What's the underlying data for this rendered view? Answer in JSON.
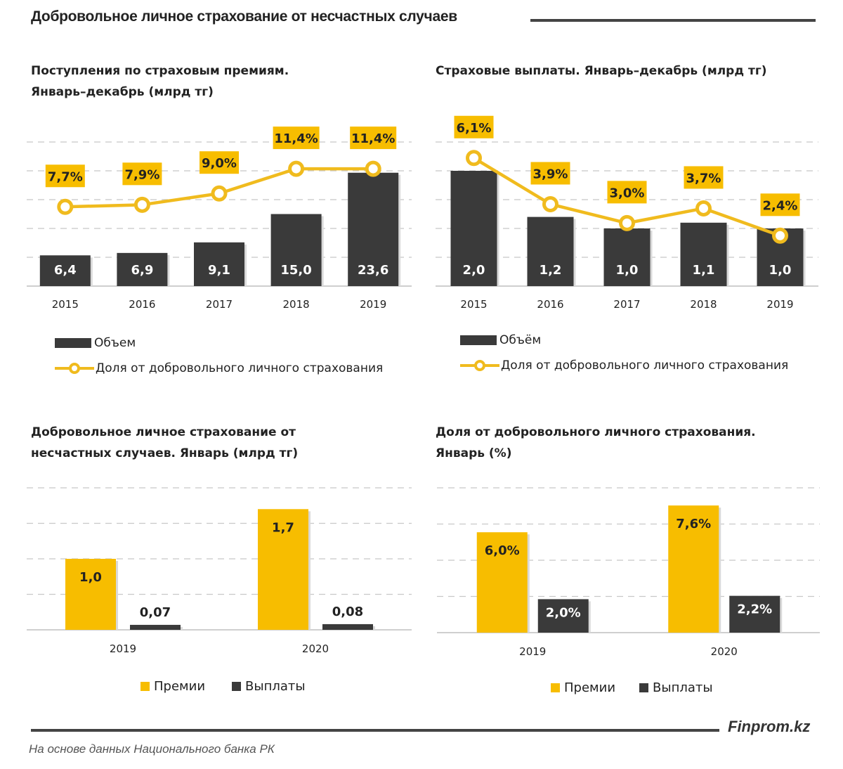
{
  "header": {
    "title": "Добровольное личное страхование от несчастных случаев"
  },
  "footer": {
    "brand": "Finprom.kz",
    "source": "На основе данных Национального банка РК"
  },
  "colors": {
    "bar_dark": "#3a3a3a",
    "accent_yellow": "#f7bd00",
    "line_yellow": "#f0bb1e",
    "grid": "#c8c8c8"
  },
  "chart_data": [
    {
      "type": "bar",
      "id": "premiums",
      "title": "Поступления  по страховым  премиям.\nЯнварь–декабрь  (млрд тг)",
      "categories": [
        "2015",
        "2016",
        "2017",
        "2018",
        "2019"
      ],
      "series": [
        {
          "name": "Объем",
          "kind": "bar",
          "values": [
            6.4,
            6.9,
            9.1,
            15.0,
            23.6
          ],
          "labels": [
            "6,4",
            "6,9",
            "9,1",
            "15,0",
            "23,6"
          ]
        },
        {
          "name": "Доля от добровольного личного страхования",
          "kind": "line",
          "axis": "secondary",
          "values": [
            7.7,
            7.9,
            9.0,
            11.4,
            11.4
          ],
          "labels": [
            "7,7%",
            "7,9%",
            "9,0%",
            "11,4%",
            "11,4%"
          ]
        }
      ],
      "ylim": [
        0,
        30
      ],
      "y2lim": [
        0,
        14
      ],
      "grid": true,
      "legend": [
        "Объем",
        "Доля от добровольного личного страхования"
      ],
      "legend_position": "bottom"
    },
    {
      "type": "bar",
      "id": "payouts",
      "title": "Страховые  выплаты.  Январь–декабрь  (млрд тг)",
      "categories": [
        "2015",
        "2016",
        "2017",
        "2018",
        "2019"
      ],
      "series": [
        {
          "name": "Объём",
          "kind": "bar",
          "values": [
            2.0,
            1.2,
            1.0,
            1.1,
            1.0
          ],
          "labels": [
            "2,0",
            "1,2",
            "1,0",
            "1,1",
            "1,0"
          ]
        },
        {
          "name": "Доля от добровольного личного страхования",
          "kind": "line",
          "axis": "secondary",
          "values": [
            6.1,
            3.9,
            3.0,
            3.7,
            2.4
          ],
          "labels": [
            "6,1%",
            "3,9%",
            "3,0%",
            "3,7%",
            "2,4%"
          ]
        }
      ],
      "ylim": [
        0,
        2.5
      ],
      "y2lim": [
        0,
        8
      ],
      "grid": true,
      "legend": [
        "Объём",
        "Доля от добровольного личного страхования"
      ],
      "legend_position": "bottom"
    },
    {
      "type": "bar",
      "id": "january-volume",
      "title": "Добровольное  личное страхование  от\nнесчастных  случаев.  Январь  (млрд тг)",
      "categories": [
        "2019",
        "2020"
      ],
      "series": [
        {
          "name": "Премии",
          "values": [
            1.0,
            1.7
          ],
          "labels": [
            "1,0",
            "1,7"
          ]
        },
        {
          "name": "Выплаты",
          "values": [
            0.07,
            0.08
          ],
          "labels": [
            "0,07",
            "0,08"
          ]
        }
      ],
      "ylim": [
        0,
        2.0
      ],
      "grid": true,
      "legend": [
        "Премии",
        "Выплаты"
      ],
      "legend_position": "bottom"
    },
    {
      "type": "bar",
      "id": "january-share",
      "title": "Доля от добровольного  личного  страхования.\nЯнварь  (%)",
      "categories": [
        "2019",
        "2020"
      ],
      "series": [
        {
          "name": "Премии",
          "values": [
            6.0,
            7.6
          ],
          "labels": [
            "6,0%",
            "7,6%"
          ]
        },
        {
          "name": "Выплаты",
          "values": [
            2.0,
            2.2
          ],
          "labels": [
            "2,0%",
            "2,2%"
          ]
        }
      ],
      "ylim": [
        0,
        10
      ],
      "grid": true,
      "legend": [
        "Премии",
        "Выплаты"
      ],
      "legend_position": "bottom"
    }
  ]
}
